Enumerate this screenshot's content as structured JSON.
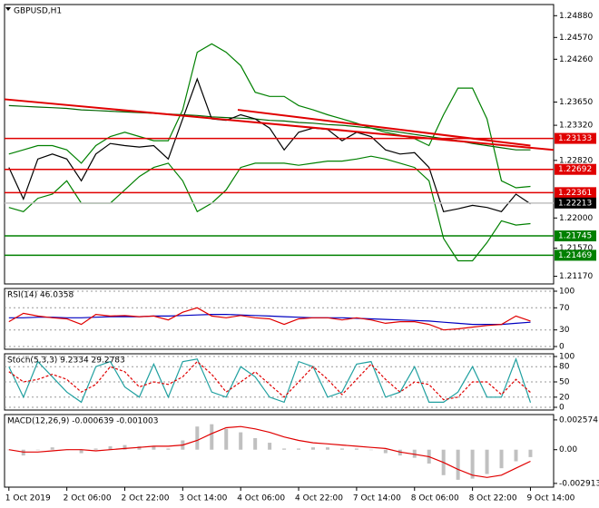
{
  "chart_data": [
    {
      "type": "line",
      "title": "GBPUSD,H1",
      "xlim": [
        -0.3,
        37.6
      ],
      "ylim": [
        1.211,
        1.25
      ],
      "yticks": [
        {
          "value": 1.2488,
          "label": "1.24880"
        },
        {
          "value": 1.2457,
          "label": "1.24570"
        },
        {
          "value": 1.2426,
          "label": "1.24260"
        },
        {
          "value": 1.2365,
          "label": "1.23650"
        },
        {
          "value": 1.2332,
          "label": "1.23320"
        },
        {
          "value": 1.2282,
          "label": "1.22820"
        },
        {
          "value": 1.22,
          "label": "1.22000"
        },
        {
          "value": 1.2157,
          "label": "1.21570"
        },
        {
          "value": 1.2117,
          "label": "1.21170"
        }
      ],
      "grid": false,
      "series": [
        {
          "color": "#006400",
          "values": [
            1.236,
            1.2359,
            1.2358,
            1.2357,
            1.2356,
            1.2354,
            1.2353,
            1.2352,
            1.2351,
            1.235,
            1.2349,
            1.2348,
            1.2347,
            1.2346,
            1.2344,
            1.2343,
            1.2342,
            1.2341,
            1.2339,
            1.2338,
            1.2336,
            1.2335,
            1.2333,
            1.2332,
            1.233,
            1.2328,
            1.2325,
            1.2322,
            1.2319,
            1.2316,
            1.2313,
            1.231,
            1.2306,
            1.2303,
            1.23,
            1.2297,
            1.2297
          ]
        },
        {
          "color": "#008000",
          "values": [
            1.2291,
            1.2297,
            1.2303,
            1.2303,
            1.2297,
            1.2278,
            1.2303,
            1.2316,
            1.2322,
            1.2316,
            1.231,
            1.231,
            1.2354,
            1.2436,
            1.2448,
            1.2436,
            1.2417,
            1.2379,
            1.2373,
            1.2373,
            1.236,
            1.2354,
            1.2347,
            1.2341,
            1.2335,
            1.2328,
            1.2322,
            1.2318,
            1.2313,
            1.2303,
            1.2347,
            1.2385,
            1.2385,
            1.2341,
            1.2253,
            1.2243,
            1.2245
          ]
        },
        {
          "color": "#008000",
          "values": [
            1.2215,
            1.2209,
            1.2228,
            1.2234,
            1.2253,
            1.2221,
            1.2221,
            1.2221,
            1.224,
            1.2259,
            1.2272,
            1.2278,
            1.2253,
            1.2209,
            1.2221,
            1.224,
            1.2272,
            1.2278,
            1.2278,
            1.2278,
            1.2275,
            1.2278,
            1.2281,
            1.2281,
            1.2284,
            1.2288,
            1.2284,
            1.2278,
            1.2272,
            1.2253,
            1.2171,
            1.2139,
            1.2139,
            1.2165,
            1.2196,
            1.219,
            1.2192
          ]
        },
        {
          "color": "#000000",
          "values": [
            1.2272,
            1.2227,
            1.2284,
            1.2291,
            1.2284,
            1.2253,
            1.2291,
            1.2306,
            1.2303,
            1.2301,
            1.2303,
            1.2284,
            1.2341,
            1.2398,
            1.2341,
            1.2339,
            1.2347,
            1.2341,
            1.2328,
            1.2297,
            1.2322,
            1.2328,
            1.2326,
            1.231,
            1.2322,
            1.2316,
            1.2297,
            1.2291,
            1.2293,
            1.2272,
            1.2209,
            1.2213,
            1.2218,
            1.2215,
            1.2209,
            1.2234,
            1.222
          ]
        }
      ],
      "trendlines": [
        {
          "color": "#e00000",
          "x": [
            -0.3,
            37.6
          ],
          "y": [
            1.2369,
            1.2297
          ]
        },
        {
          "color": "#e00000",
          "x": [
            15.8,
            36
          ],
          "y": [
            1.2354,
            1.2303
          ]
        }
      ],
      "levels": [
        {
          "value": 1.23133,
          "color": "#e00000",
          "line_color": "#e00000"
        },
        {
          "value": 1.22692,
          "color": "#e00000",
          "line_color": "#e00000"
        },
        {
          "value": 1.22361,
          "color": "#e00000",
          "line_color": "#e00000"
        },
        {
          "value": 1.22213,
          "color": "#000000",
          "line_color": "#c0c0c0"
        },
        {
          "value": 1.21745,
          "color": "#008000",
          "line_color": "#008000"
        },
        {
          "value": 1.21469,
          "color": "#008000",
          "line_color": "#008000"
        }
      ]
    },
    {
      "type": "line",
      "title": "RSI(14) 46.0358",
      "xlim": [
        -0.3,
        37.6
      ],
      "ylim": [
        0,
        100
      ],
      "yticks": [
        100,
        70,
        30,
        0
      ],
      "grid": true,
      "series": [
        {
          "color": "#0000c0",
          "values": [
            52,
            52,
            53,
            53,
            52,
            52,
            53,
            54,
            54,
            54,
            55,
            55,
            56,
            57,
            58,
            58,
            57,
            56,
            55,
            54,
            53,
            52,
            52,
            52,
            51,
            50,
            49,
            48,
            47,
            46,
            44,
            42,
            40,
            40,
            40,
            42,
            44
          ]
        },
        {
          "color": "#e00000",
          "values": [
            45,
            60,
            55,
            52,
            50,
            40,
            58,
            55,
            56,
            54,
            55,
            48,
            62,
            70,
            55,
            52,
            56,
            52,
            50,
            40,
            50,
            52,
            52,
            48,
            52,
            48,
            42,
            45,
            45,
            40,
            30,
            32,
            35,
            38,
            40,
            55,
            46.0358
          ]
        }
      ]
    },
    {
      "type": "line",
      "title": "Stoch(5,3,3) 9.2334 29.2783",
      "xlim": [
        -0.3,
        37.6
      ],
      "ylim": [
        0,
        100
      ],
      "yticks": [
        100,
        80,
        50,
        20,
        0
      ],
      "grid": true,
      "series": [
        {
          "color": "#20a0a0",
          "values": [
            80,
            20,
            90,
            60,
            30,
            10,
            80,
            90,
            40,
            20,
            85,
            20,
            90,
            95,
            30,
            20,
            80,
            60,
            20,
            10,
            90,
            80,
            20,
            30,
            85,
            90,
            20,
            30,
            80,
            10,
            10,
            30,
            80,
            20,
            20,
            95,
            9.2334
          ]
        },
        {
          "color": "#e00000",
          "dash": true,
          "values": [
            70,
            50,
            55,
            65,
            55,
            30,
            45,
            80,
            70,
            40,
            50,
            45,
            60,
            90,
            65,
            30,
            50,
            70,
            45,
            20,
            50,
            80,
            55,
            25,
            55,
            85,
            55,
            30,
            50,
            45,
            15,
            20,
            50,
            50,
            25,
            55,
            29.2783
          ]
        }
      ]
    },
    {
      "type": "bar",
      "title": "MACD(12,26,9) -0.000639 -0.001003",
      "xlim": [
        -0.3,
        37.6
      ],
      "ylim": [
        -0.003,
        0.0028
      ],
      "yticks": [
        0.002574,
        {
          "value": 0,
          "label": "0.00"
        },
        -0.002913
      ],
      "grid": false,
      "color": "#c0c0c0",
      "values": [
        0,
        -0.0005,
        0,
        0.0002,
        0,
        -0.0003,
        0.0001,
        0.0003,
        0.0004,
        0.0003,
        0.0003,
        0.0001,
        0.0008,
        0.002,
        0.0022,
        0.0018,
        0.0015,
        0.001,
        0.0006,
        0.0001,
        0.0001,
        0.0002,
        0.0002,
        0.0001,
        0.0001,
        0,
        -0.0003,
        -0.0005,
        -0.0007,
        -0.0012,
        -0.0022,
        -0.0026,
        -0.0025,
        -0.0021,
        -0.0016,
        -0.001,
        -0.000639
      ],
      "series": [
        {
          "color": "#e00000",
          "values": [
            0,
            -0.0002,
            -0.0002,
            -0.0001,
            0,
            0,
            -0.0001,
            0,
            0.0001,
            0.0002,
            0.0003,
            0.0003,
            0.0004,
            0.0008,
            0.0014,
            0.0019,
            0.002,
            0.0018,
            0.0015,
            0.0011,
            0.0008,
            0.0006,
            0.0005,
            0.0004,
            0.0003,
            0.0002,
            0.0001,
            -0.0002,
            -0.0004,
            -0.0006,
            -0.0011,
            -0.0017,
            -0.0022,
            -0.0024,
            -0.0022,
            -0.0016,
            -0.001003
          ]
        }
      ],
      "categories": [
        "1 Oct 2019",
        null,
        null,
        null,
        "2 Oct 06:00",
        null,
        null,
        null,
        "2 Oct 22:00",
        null,
        null,
        null,
        "3 Oct 14:00",
        null,
        null,
        null,
        "4 Oct 06:00",
        null,
        null,
        null,
        "4 Oct 22:00",
        null,
        null,
        null,
        "7 Oct 14:00",
        null,
        null,
        null,
        "8 Oct 06:00",
        null,
        null,
        null,
        "8 Oct 22:00",
        null,
        null,
        null,
        "9 Oct 14:00"
      ]
    }
  ]
}
